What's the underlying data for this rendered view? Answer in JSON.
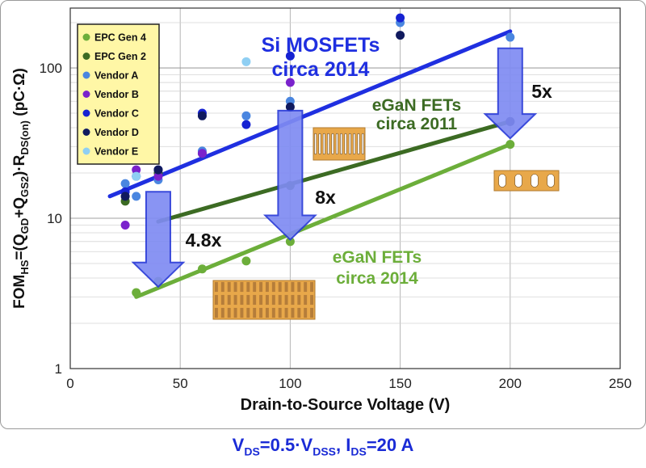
{
  "chart_data": {
    "type": "scatter",
    "title": "",
    "xlabel": "Drain-to-Source Voltage (V)",
    "ylabel": {
      "parts": [
        {
          "t": "FOM",
          "sub": false
        },
        {
          "t": "HS",
          "sub": true
        },
        {
          "t": "=(Q",
          "sub": false
        },
        {
          "t": "GD",
          "sub": true
        },
        {
          "t": "+Q",
          "sub": false
        },
        {
          "t": "GS2",
          "sub": true
        },
        {
          "t": ")·R",
          "sub": false
        },
        {
          "t": "DS(on)",
          "sub": true
        },
        {
          "t": " (pC·Ω)",
          "sub": false
        }
      ]
    },
    "x_scale": "linear",
    "y_scale": "log",
    "xlim": [
      0,
      250
    ],
    "ylim": [
      1,
      250
    ],
    "x_ticks": [
      0,
      50,
      100,
      150,
      200,
      250
    ],
    "y_ticks": [
      1,
      10,
      100
    ],
    "grid": true,
    "legend_position": "top-left",
    "series": [
      {
        "name": "EPC Gen 4",
        "color": "#6cae3a",
        "points": [
          [
            30,
            3.2
          ],
          [
            40,
            3.8
          ],
          [
            60,
            4.6
          ],
          [
            80,
            5.2
          ],
          [
            100,
            7.0
          ],
          [
            200,
            31
          ]
        ]
      },
      {
        "name": "EPC Gen 2",
        "color": "#3c6b23",
        "points": [
          [
            25,
            13
          ],
          [
            40,
            20
          ],
          [
            60,
            27
          ],
          [
            100,
            16.5
          ],
          [
            200,
            44
          ]
        ]
      },
      {
        "name": "Vendor A",
        "color": "#4a86e0",
        "points": [
          [
            25,
            17
          ],
          [
            30,
            14
          ],
          [
            40,
            18
          ],
          [
            60,
            28
          ],
          [
            80,
            48
          ],
          [
            100,
            60
          ],
          [
            150,
            200
          ],
          [
            200,
            160
          ]
        ]
      },
      {
        "name": "Vendor B",
        "color": "#7a22cc",
        "points": [
          [
            25,
            9
          ],
          [
            30,
            21
          ],
          [
            40,
            19
          ],
          [
            60,
            27
          ],
          [
            100,
            80
          ]
        ]
      },
      {
        "name": "Vendor C",
        "color": "#1622d2",
        "points": [
          [
            25,
            15
          ],
          [
            30,
            19
          ],
          [
            40,
            21
          ],
          [
            60,
            50
          ],
          [
            80,
            42
          ],
          [
            100,
            120
          ],
          [
            150,
            215
          ]
        ]
      },
      {
        "name": "Vendor D",
        "color": "#101a5e",
        "points": [
          [
            25,
            14
          ],
          [
            40,
            21
          ],
          [
            60,
            48
          ],
          [
            100,
            55
          ],
          [
            150,
            165
          ],
          [
            200,
            44
          ]
        ]
      },
      {
        "name": "Vendor E",
        "color": "#8fcff3",
        "points": [
          [
            30,
            19
          ],
          [
            80,
            110
          ]
        ]
      }
    ],
    "trend_lines": [
      {
        "label_lines": [
          "Si MOSFETs",
          "circa 2014"
        ],
        "color": "#1f2fe0",
        "from": [
          18,
          14
        ],
        "to": [
          200,
          175
        ]
      },
      {
        "label_lines": [
          "eGaN FETs",
          "circa 2011"
        ],
        "color": "#3c6b23",
        "from": [
          40,
          9.5
        ],
        "to": [
          200,
          44
        ]
      },
      {
        "label_lines": [
          "eGaN FETs",
          "circa 2014"
        ],
        "color": "#6cae3a",
        "from": [
          30,
          3.0
        ],
        "to": [
          200,
          31
        ]
      }
    ],
    "arrows": [
      {
        "label": "4.8x",
        "x": 40,
        "from": 15,
        "to": 3.5
      },
      {
        "label": "8x",
        "x": 100,
        "from": 52,
        "to": 7.2
      },
      {
        "label": "5x",
        "x": 200,
        "from": 135,
        "to": 34
      }
    ],
    "colors": {
      "legend_bg": "#fff7a6",
      "arrow_fill": "#7f8bf2",
      "arrow_stroke": "#2a3bd8",
      "die_fill": "#e8a84a",
      "die_stripe": "#8a5a2e"
    }
  },
  "footer": {
    "parts": [
      {
        "t": "V",
        "sub": false
      },
      {
        "t": "DS",
        "sub": true
      },
      {
        "t": "=0.5·V",
        "sub": false
      },
      {
        "t": "DSS",
        "sub": true
      },
      {
        "t": ", I",
        "sub": false
      },
      {
        "t": "DS",
        "sub": true
      },
      {
        "t": "=20 A",
        "sub": false
      }
    ]
  }
}
